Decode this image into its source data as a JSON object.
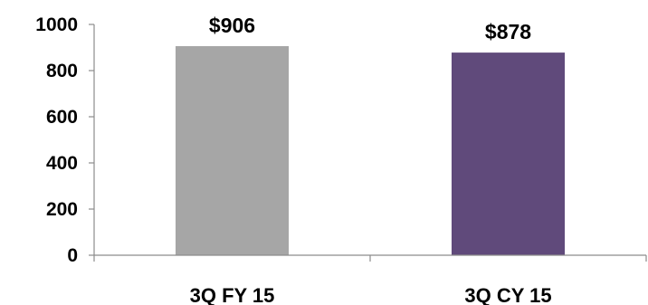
{
  "chart_data": {
    "type": "bar",
    "categories": [
      "3Q FY 15",
      "3Q CY 15"
    ],
    "values": [
      906,
      878
    ],
    "data_labels": [
      "$906",
      "$878"
    ],
    "bar_colors": [
      "#a6a6a6",
      "#604a7b"
    ],
    "title": "",
    "xlabel": "",
    "ylabel": "",
    "ylim": [
      0,
      1000
    ],
    "yticks": [
      0,
      200,
      400,
      600,
      800,
      1000
    ],
    "grid": false,
    "legend": "none"
  }
}
